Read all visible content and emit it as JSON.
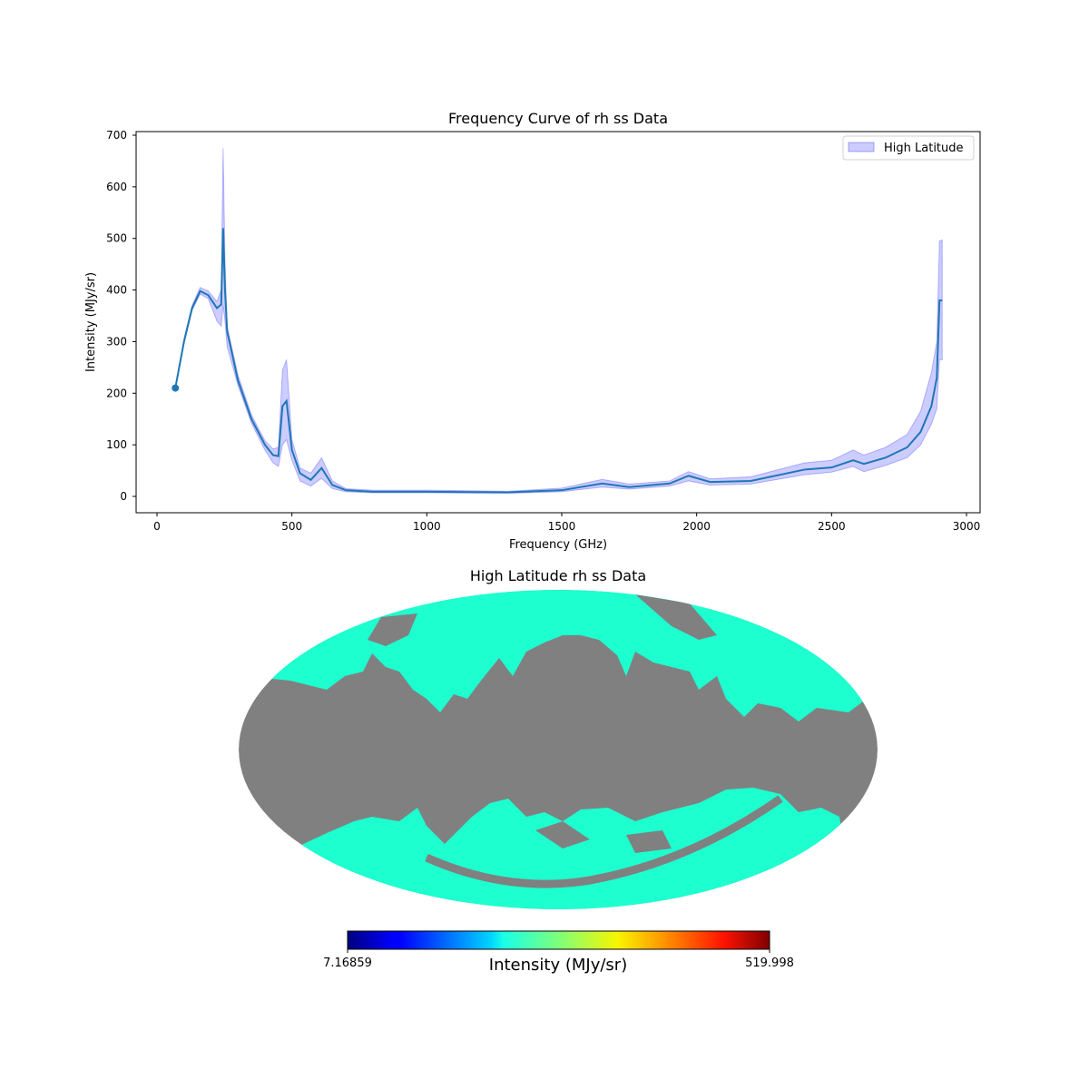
{
  "chart_data": [
    {
      "type": "line",
      "title": "Frequency Curve of rh ss Data",
      "xlabel": "Frequency (GHz)",
      "ylabel": "Intensity (MJy/sr)",
      "xlim": [
        -80,
        3050
      ],
      "ylim": [
        -30,
        710
      ],
      "xticks": [
        0,
        500,
        1000,
        1500,
        2000,
        2500,
        3000
      ],
      "xtick_labels": [
        "0",
        "500",
        "1000",
        "1500",
        "2000",
        "2500",
        "3000"
      ],
      "yticks": [
        0,
        100,
        200,
        300,
        400,
        500,
        600,
        700
      ],
      "ytick_labels": [
        "0",
        "100",
        "200",
        "300",
        "400",
        "500",
        "600",
        "700"
      ],
      "grid": false,
      "legend": {
        "placement": "top-right",
        "entries": [
          "High Latitude"
        ]
      },
      "series": [
        {
          "name": "High Latitude",
          "line_color": "#1f77b4",
          "band_color": "#0000ff",
          "x": [
            68,
            100,
            130,
            160,
            190,
            222,
            238,
            245,
            252,
            260,
            300,
            350,
            400,
            430,
            450,
            465,
            480,
            500,
            530,
            570,
            610,
            650,
            700,
            800,
            1000,
            1300,
            1500,
            1650,
            1750,
            1900,
            1970,
            2050,
            2200,
            2400,
            2500,
            2580,
            2620,
            2700,
            2780,
            2830,
            2870,
            2890,
            2900,
            2910
          ],
          "mean": [
            210,
            300,
            365,
            398,
            390,
            365,
            372,
            520,
            400,
            320,
            225,
            150,
            100,
            80,
            78,
            175,
            185,
            90,
            45,
            32,
            55,
            22,
            12,
            9,
            9,
            8,
            12,
            25,
            18,
            25,
            40,
            28,
            30,
            52,
            56,
            70,
            63,
            75,
            95,
            125,
            175,
            230,
            380,
            380
          ],
          "lower": [
            210,
            295,
            360,
            392,
            383,
            340,
            330,
            370,
            340,
            290,
            215,
            142,
            90,
            65,
            58,
            100,
            110,
            70,
            30,
            20,
            35,
            15,
            9,
            7,
            7,
            6,
            9,
            18,
            14,
            20,
            30,
            22,
            24,
            42,
            47,
            58,
            48,
            60,
            75,
            100,
            140,
            170,
            265,
            265
          ],
          "upper": [
            210,
            305,
            370,
            405,
            398,
            378,
            400,
            675,
            460,
            330,
            235,
            158,
            108,
            92,
            95,
            245,
            265,
            110,
            55,
            45,
            75,
            30,
            15,
            12,
            12,
            10,
            16,
            33,
            24,
            30,
            48,
            34,
            38,
            65,
            70,
            90,
            80,
            95,
            120,
            165,
            240,
            300,
            495,
            497
          ]
        }
      ]
    },
    {
      "type": "heatmap",
      "title": "High Latitude rh ss Data",
      "projection": "mollweide",
      "colormap": "jet",
      "colorbar_label": "Intensity (MJy/sr)",
      "vmin_label": "7.16859",
      "vmax_label": "519.998",
      "masked_color": "#808080",
      "data_color": "#1effd0"
    }
  ]
}
